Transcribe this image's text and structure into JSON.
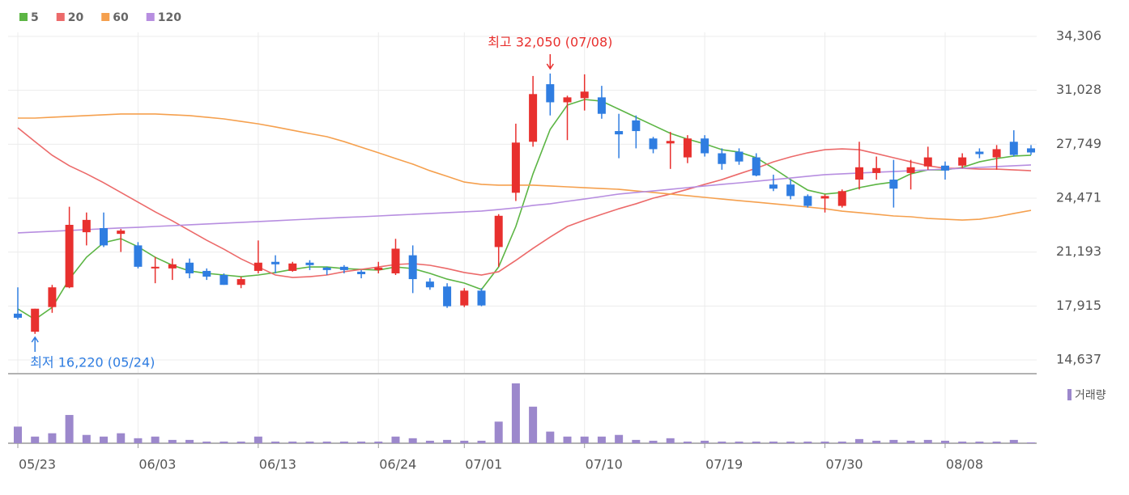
{
  "chart_data": {
    "type": "candlestick",
    "categories": [
      "05/23",
      null,
      null,
      null,
      null,
      null,
      null,
      "06/03",
      null,
      null,
      null,
      null,
      null,
      null,
      "06/13",
      null,
      null,
      null,
      null,
      null,
      null,
      "06/24",
      null,
      null,
      null,
      null,
      "07/01",
      null,
      null,
      null,
      null,
      null,
      null,
      "07/10",
      null,
      null,
      null,
      null,
      null,
      null,
      "07/19",
      null,
      null,
      null,
      null,
      null,
      null,
      "07/30",
      null,
      null,
      null,
      null,
      null,
      null,
      "08/08",
      null,
      null,
      null,
      null,
      null
    ],
    "open": [
      17450,
      16350,
      17850,
      19050,
      22400,
      22650,
      22300,
      21600,
      20200,
      20200,
      20550,
      20050,
      19800,
      19200,
      20050,
      20600,
      20050,
      20550,
      20250,
      20300,
      20000,
      20100,
      19900,
      21000,
      19400,
      19100,
      17950,
      18850,
      21500,
      24800,
      27900,
      31400,
      30300,
      30550,
      30600,
      28550,
      29200,
      28100,
      27800,
      26950,
      28100,
      27200,
      27300,
      26950,
      25300,
      25300,
      24600,
      24450,
      24000,
      25600,
      26000,
      25600,
      26000,
      26400,
      26450,
      26450,
      27300,
      26950,
      27900,
      27500
    ],
    "high": [
      19050,
      17750,
      19200,
      23950,
      23600,
      23600,
      22600,
      21800,
      20900,
      20800,
      20800,
      20200,
      19900,
      19700,
      21900,
      21000,
      20600,
      20700,
      20300,
      20400,
      20100,
      20600,
      22000,
      21600,
      19600,
      19300,
      19000,
      19000,
      23500,
      29000,
      31900,
      32050,
      30700,
      32000,
      31300,
      29600,
      29500,
      28200,
      28500,
      28300,
      28300,
      27500,
      27500,
      27200,
      25900,
      25600,
      24700,
      24700,
      25000,
      27900,
      27000,
      26800,
      26800,
      27600,
      26700,
      27200,
      27500,
      27700,
      28600,
      27700
    ],
    "low": [
      17100,
      16220,
      17500,
      19000,
      21600,
      21500,
      21200,
      20200,
      19300,
      19500,
      19600,
      19500,
      19200,
      19000,
      19900,
      19900,
      20000,
      20100,
      19800,
      19900,
      19600,
      19900,
      19800,
      18700,
      18900,
      17800,
      17850,
      17900,
      20300,
      24300,
      27600,
      29500,
      28000,
      29800,
      29300,
      26900,
      27500,
      27200,
      26250,
      26600,
      27000,
      26200,
      26500,
      25800,
      24900,
      24400,
      23900,
      23600,
      23900,
      25000,
      25600,
      23900,
      25000,
      26200,
      25600,
      26300,
      26900,
      26200,
      27000,
      27100
    ],
    "close": [
      17200,
      17750,
      19050,
      22850,
      23150,
      21600,
      22500,
      20300,
      20300,
      20450,
      19900,
      19700,
      19200,
      19550,
      20550,
      20450,
      20500,
      20400,
      20100,
      20100,
      19850,
      20250,
      21400,
      19550,
      19050,
      17900,
      18850,
      17950,
      23400,
      27850,
      30800,
      30300,
      30600,
      30950,
      29600,
      28350,
      28550,
      27450,
      27950,
      28100,
      27200,
      26550,
      26700,
      25850,
      25050,
      24600,
      24000,
      24600,
      24900,
      26350,
      26300,
      25050,
      26350,
      26950,
      26150,
      26950,
      27150,
      27450,
      27100,
      27250
    ],
    "up_color": "#e8302e",
    "down_color": "#2f7de1",
    "series": [
      {
        "name": "5",
        "color": "#5cb544",
        "values": [
          17740,
          17100,
          17830,
          19550,
          20880,
          21770,
          22010,
          21520,
          20880,
          20390,
          20050,
          19900,
          19800,
          19700,
          19800,
          19950,
          20140,
          20290,
          20290,
          20190,
          20140,
          20100,
          20290,
          20190,
          19900,
          19550,
          19310,
          18920,
          20290,
          22750,
          25950,
          28650,
          30130,
          30470,
          30370,
          29880,
          29390,
          28900,
          28410,
          28060,
          27770,
          27420,
          27270,
          26930,
          26290,
          25600,
          24960,
          24720,
          24820,
          25110,
          25310,
          25450,
          25950,
          26190,
          26190,
          26340,
          26680,
          26880,
          27030,
          27080
        ]
      },
      {
        "name": "20",
        "color": "#ec6a6a",
        "values": [
          28750,
          27910,
          27080,
          26440,
          25950,
          25410,
          24820,
          24230,
          23640,
          23090,
          22500,
          21910,
          21370,
          20780,
          20290,
          19800,
          19650,
          19700,
          19800,
          20000,
          20140,
          20290,
          20440,
          20490,
          20390,
          20190,
          19950,
          19800,
          20000,
          20690,
          21420,
          22110,
          22750,
          23140,
          23490,
          23830,
          24130,
          24470,
          24720,
          25010,
          25310,
          25600,
          25950,
          26290,
          26680,
          26980,
          27230,
          27420,
          27470,
          27420,
          27180,
          26930,
          26680,
          26440,
          26290,
          26290,
          26240,
          26240,
          26190,
          26140
        ]
      },
      {
        "name": "60",
        "color": "#f5a04e",
        "values": [
          29340,
          29340,
          29390,
          29440,
          29490,
          29540,
          29590,
          29590,
          29590,
          29540,
          29490,
          29390,
          29290,
          29140,
          28990,
          28800,
          28600,
          28400,
          28210,
          27910,
          27570,
          27230,
          26880,
          26540,
          26140,
          25800,
          25450,
          25310,
          25260,
          25260,
          25260,
          25210,
          25160,
          25110,
          25060,
          25010,
          24910,
          24820,
          24720,
          24620,
          24520,
          24420,
          24320,
          24230,
          24130,
          24030,
          23930,
          23830,
          23680,
          23590,
          23490,
          23390,
          23340,
          23240,
          23190,
          23140,
          23190,
          23340,
          23540,
          23730
        ]
      },
      {
        "name": "120",
        "color": "#b78ee0",
        "values": [
          22360,
          22410,
          22460,
          22510,
          22560,
          22610,
          22660,
          22700,
          22750,
          22800,
          22850,
          22900,
          22950,
          23000,
          23050,
          23100,
          23150,
          23200,
          23250,
          23300,
          23340,
          23390,
          23440,
          23490,
          23540,
          23590,
          23640,
          23690,
          23780,
          23880,
          24030,
          24130,
          24280,
          24420,
          24570,
          24720,
          24820,
          24910,
          25010,
          25110,
          25210,
          25310,
          25400,
          25500,
          25600,
          25700,
          25800,
          25900,
          25950,
          26000,
          26050,
          26090,
          26140,
          26190,
          26240,
          26290,
          26340,
          26390,
          26440,
          26490
        ]
      }
    ],
    "volume": {
      "name": "거래량",
      "color": "#9c88cc",
      "values": [
        20,
        8,
        12,
        34,
        10,
        8,
        12,
        6,
        8,
        4,
        4,
        2,
        2,
        2,
        8,
        2,
        2,
        2,
        2,
        2,
        2,
        2,
        8,
        6,
        3,
        4,
        3,
        3,
        26,
        72,
        44,
        14,
        8,
        8,
        8,
        10,
        4,
        3,
        6,
        2,
        3,
        2,
        2,
        2,
        2,
        2,
        2,
        2,
        2,
        5,
        3,
        4,
        3,
        4,
        3,
        2,
        2,
        2,
        4,
        1
      ]
    },
    "ylim": [
      14637,
      34306
    ],
    "yticks": [
      {
        "value": 14637,
        "label": "14,637"
      },
      {
        "value": 17915,
        "label": "17,915"
      },
      {
        "value": 21193,
        "label": "21,193"
      },
      {
        "value": 24471,
        "label": "24,471"
      },
      {
        "value": 27749,
        "label": "27,749"
      },
      {
        "value": 31028,
        "label": "31,028"
      },
      {
        "value": 34306,
        "label": "34,306"
      }
    ],
    "grid": true,
    "legend": "top-left",
    "high_annotation": "최고 32,050 (07/08)",
    "low_annotation": "최저 16,220 (05/24)"
  }
}
